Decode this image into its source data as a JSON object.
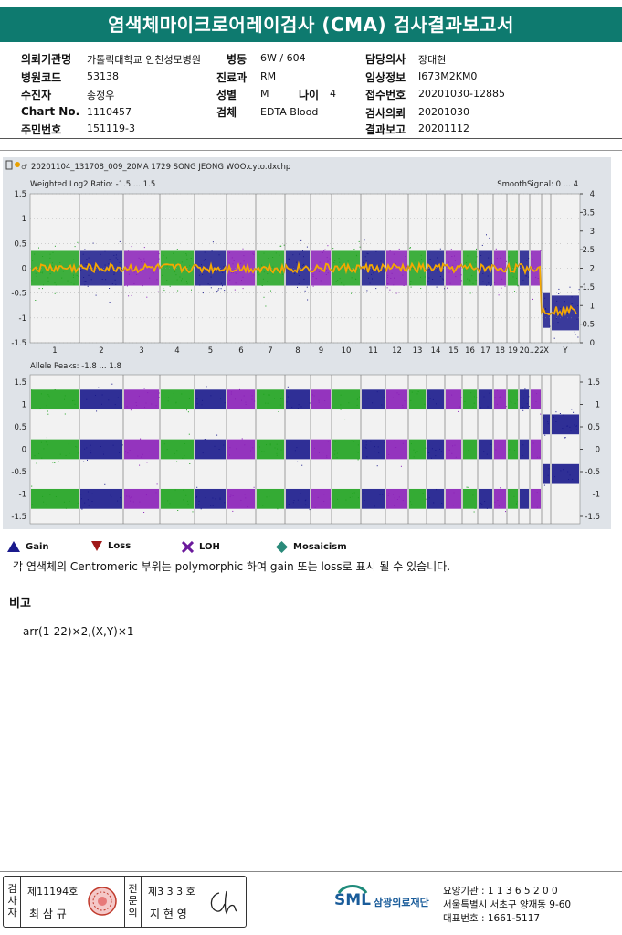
{
  "title": "염색체마이크로어레이검사 (CMA) 검사결과보고서",
  "header": {
    "req_inst_label": "의뢰기관명",
    "req_inst": "가톨릭대학교 인천성모병원",
    "ward_label": "병동",
    "ward": "6W / 604",
    "doctor_label": "담당의사",
    "doctor": "장대현",
    "hosp_code_label": "병원코드",
    "hosp_code": "53138",
    "dept_label": "진료과",
    "dept": "RM",
    "clinical_label": "임상정보",
    "clinical": "I673M2KM0",
    "patient_label": "수진자",
    "patient": "송정우",
    "sex_label": "성별",
    "sex": "M",
    "age_label": "나이",
    "age": "4",
    "accession_label": "접수번호",
    "accession": "20201030-12885",
    "chart_label": "Chart No.",
    "chart": "1110457",
    "specimen_label": "검체",
    "specimen": "EDTA Blood",
    "req_date_label": "검사의뢰",
    "req_date": "20201030",
    "id_label": "주민번호",
    "id_no": "151119-3",
    "report_label": "결과보고",
    "report_date": "20201112"
  },
  "plot": {
    "file_name": "20201104_131708_009_20MA 1729 SONG JEONG WOO.cyto.dxchp",
    "top_title": "Weighted Log2 Ratio: -1.5 ... 1.5",
    "top_right_title": "SmoothSignal: 0 ... 4",
    "bottom_title": "Allele Peaks: -1.8 ... 1.8",
    "top_left_ticks": [
      "1.5",
      "1",
      "0.5",
      "0",
      "-0.5",
      "-1",
      "-1.5"
    ],
    "top_right_ticks": [
      "4",
      "3.5",
      "3",
      "2.5",
      "2",
      "1.5",
      "1",
      "0.5",
      "0"
    ],
    "bottom_left_ticks": [
      "1.5",
      "1",
      "0.5",
      "0",
      "-0.5",
      "-1",
      "-1.5"
    ],
    "bottom_right_ticks": [
      "1.5",
      "1",
      "0.5",
      "0",
      "-0.5",
      "-1",
      "-1.5"
    ],
    "chrom_labels": [
      "1",
      "2",
      "3",
      "4",
      "5",
      "6",
      "7",
      "8",
      "9",
      "10",
      "11",
      "12",
      "13",
      "14",
      "15",
      "16",
      "17",
      "18",
      "19",
      "20",
      "...22",
      "X",
      "Y"
    ],
    "colors": {
      "green": "#1fa31f",
      "navy": "#1a1a8c",
      "purple": "#8a1fb8",
      "orange": "#f5a800"
    }
  },
  "legend": {
    "gain": "Gain",
    "loss": "Loss",
    "loh": "LOH",
    "mosaic": "Mosaicism"
  },
  "note": "각 염색체의 Centromeric 부위는 polymorphic 하여 gain 또는 loss로 표시 될 수 있습니다.",
  "remark_title": "비고",
  "remark": "arr(1-22)×2,(X,Y)×1",
  "footer": {
    "v1": "검사자",
    "reg1": "제11194호",
    "name1": "최 삼 규",
    "v2": "전문의",
    "reg2": "제3 3 3 호",
    "name2": "지 현 영",
    "org": "삼광의료재단",
    "logo": "SML",
    "inst_no": "요양기관 : 1 1 3 6 5 2 0 0",
    "address": "서울특별시 서초구 양재동 9-60",
    "phone": "대표번호 : 1661-5117"
  }
}
